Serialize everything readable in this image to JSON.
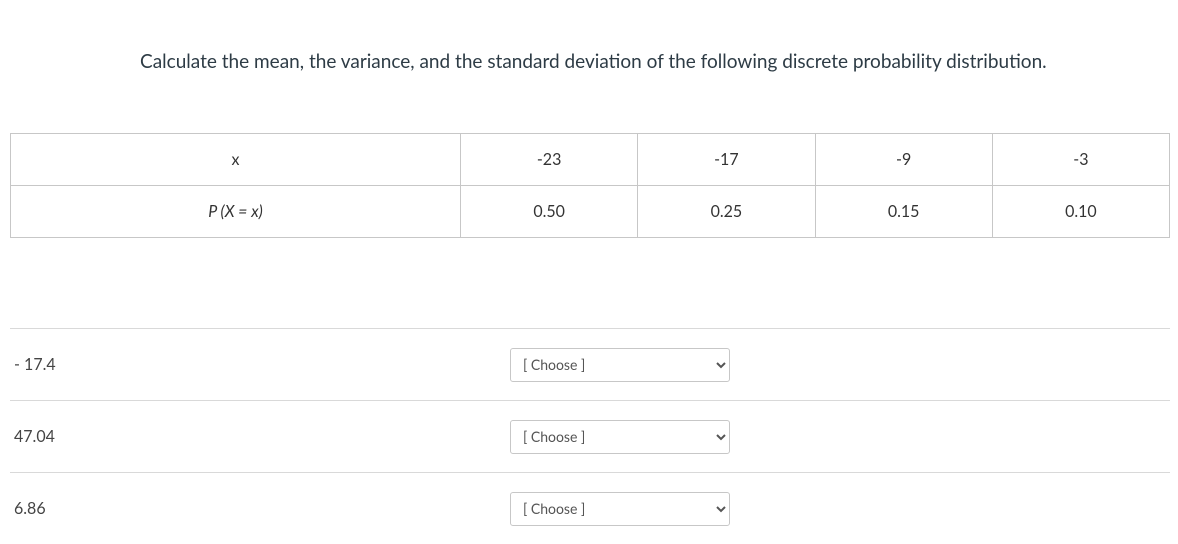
{
  "prompt": "Calculate the mean, the variance, and the standard deviation of the following discrete probability distribution.",
  "table": {
    "row1": {
      "label": "x",
      "c1": "-23",
      "c2": "-17",
      "c3": "-9",
      "c4": "-3"
    },
    "row2": {
      "label": "P (X = x)",
      "c1": "0.50",
      "c2": "0.25",
      "c3": "0.15",
      "c4": "0.10"
    }
  },
  "answers": {
    "r1": {
      "label": "- 17.4",
      "placeholder": "[ Choose ]"
    },
    "r2": {
      "label": "47.04",
      "placeholder": "[ Choose ]"
    },
    "r3": {
      "label": "6.86",
      "placeholder": "[ Choose ]"
    }
  },
  "colors": {
    "text": "#2d3b45",
    "border": "#c7c7c7",
    "divider": "#d9d9d9",
    "background": "#ffffff"
  }
}
